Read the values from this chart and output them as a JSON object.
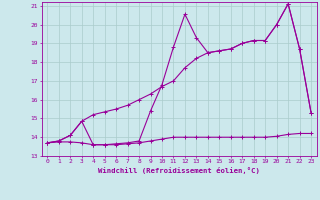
{
  "line1_x": [
    0,
    1,
    2,
    3,
    4,
    5,
    6,
    7,
    8,
    9,
    10,
    11,
    12,
    13,
    14,
    15,
    16,
    17,
    18,
    19,
    20,
    21,
    22,
    23
  ],
  "line1_y": [
    13.7,
    13.75,
    13.75,
    13.7,
    13.6,
    13.6,
    13.6,
    13.65,
    13.7,
    13.8,
    13.9,
    14.0,
    14.0,
    14.0,
    14.0,
    14.0,
    14.0,
    14.0,
    14.0,
    14.0,
    14.05,
    14.15,
    14.2,
    14.2
  ],
  "line2_x": [
    0,
    1,
    2,
    3,
    4,
    5,
    6,
    7,
    8,
    9,
    10,
    11,
    12,
    13,
    14,
    15,
    16,
    17,
    18,
    19,
    20,
    21,
    22,
    23
  ],
  "line2_y": [
    13.7,
    13.8,
    14.1,
    14.85,
    15.2,
    15.35,
    15.5,
    15.7,
    16.0,
    16.3,
    16.7,
    17.0,
    17.7,
    18.2,
    18.5,
    18.6,
    18.7,
    19.0,
    19.15,
    19.15,
    20.0,
    21.1,
    18.7,
    15.3
  ],
  "line3_x": [
    0,
    1,
    2,
    3,
    4,
    5,
    6,
    7,
    8,
    9,
    10,
    11,
    12,
    13,
    14,
    15,
    16,
    17,
    18,
    19,
    20,
    21,
    22,
    23
  ],
  "line3_y": [
    13.7,
    13.8,
    14.1,
    14.85,
    13.6,
    13.6,
    13.65,
    13.7,
    13.8,
    15.4,
    16.8,
    18.8,
    20.55,
    19.3,
    18.5,
    18.6,
    18.7,
    19.0,
    19.15,
    19.15,
    20.0,
    21.1,
    18.7,
    15.3
  ],
  "color": "#990099",
  "bg_color": "#cce8ec",
  "grid_color": "#aacccc",
  "xlabel": "Windchill (Refroidissement éolien,°C)",
  "xlim": [
    -0.5,
    23.5
  ],
  "ylim": [
    13,
    21.2
  ],
  "yticks": [
    13,
    14,
    15,
    16,
    17,
    18,
    19,
    20,
    21
  ],
  "xticks": [
    0,
    1,
    2,
    3,
    4,
    5,
    6,
    7,
    8,
    9,
    10,
    11,
    12,
    13,
    14,
    15,
    16,
    17,
    18,
    19,
    20,
    21,
    22,
    23
  ],
  "marker": "+"
}
